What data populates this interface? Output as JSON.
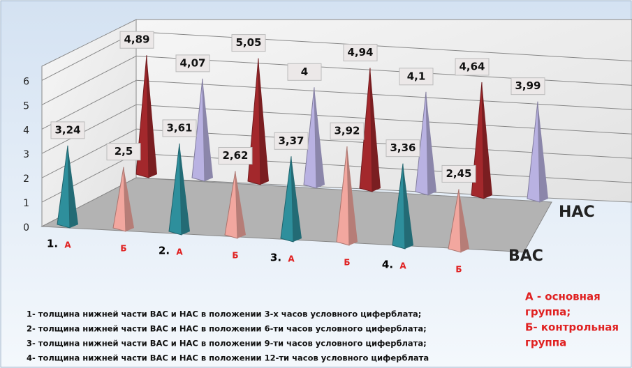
{
  "chart_data": {
    "type": "pyramid3d",
    "categories": [
      "1.",
      "2.",
      "3.",
      "4."
    ],
    "groups": [
      "А",
      "Б"
    ],
    "ylim": [
      0,
      6.5
    ],
    "yticks": [
      0,
      1,
      2,
      3,
      4,
      5,
      6
    ],
    "grid": true,
    "series": [
      {
        "name": "ВАС",
        "colors": [
          "#2e8f9c",
          "#f2a79f"
        ],
        "values": [
          [
            3.24,
            2.5
          ],
          [
            3.61,
            2.62
          ],
          [
            3.37,
            3.92
          ],
          [
            3.36,
            2.45
          ]
        ],
        "value_labels": [
          [
            "3,24",
            "2,5"
          ],
          [
            "3,61",
            "2,62"
          ],
          [
            "3,37",
            "3,92"
          ],
          [
            "3,36",
            "2,45"
          ]
        ]
      },
      {
        "name": "НАС",
        "colors": [
          "#a3282c",
          "#b9b2e2"
        ],
        "values": [
          [
            4.89,
            4.07
          ],
          [
            5.05,
            4
          ],
          [
            4.94,
            4.1
          ],
          [
            4.64,
            3.99
          ]
        ],
        "value_labels": [
          [
            "4,89",
            "4,07"
          ],
          [
            "5,05",
            "4"
          ],
          [
            "4,94",
            "4,1"
          ],
          [
            "4,64",
            "3,99"
          ]
        ]
      }
    ],
    "legend_note": [
      "А - основная",
      "группа;",
      "Б- контрольная",
      "группа"
    ],
    "notes": [
      "1- толщина  нижней части ВАС и НАС в положении 3-х часов условного циферблата;",
      "2- толщина  нижней части ВАС и НАС в положении 6-ти часов условного циферблата;",
      "3- толщина  нижней части ВАС и НАС в положении 9-ти часов условного циферблата;",
      "4- толщина  нижней части ВАС и НАС в положении 12-ти часов условного циферблата"
    ]
  }
}
